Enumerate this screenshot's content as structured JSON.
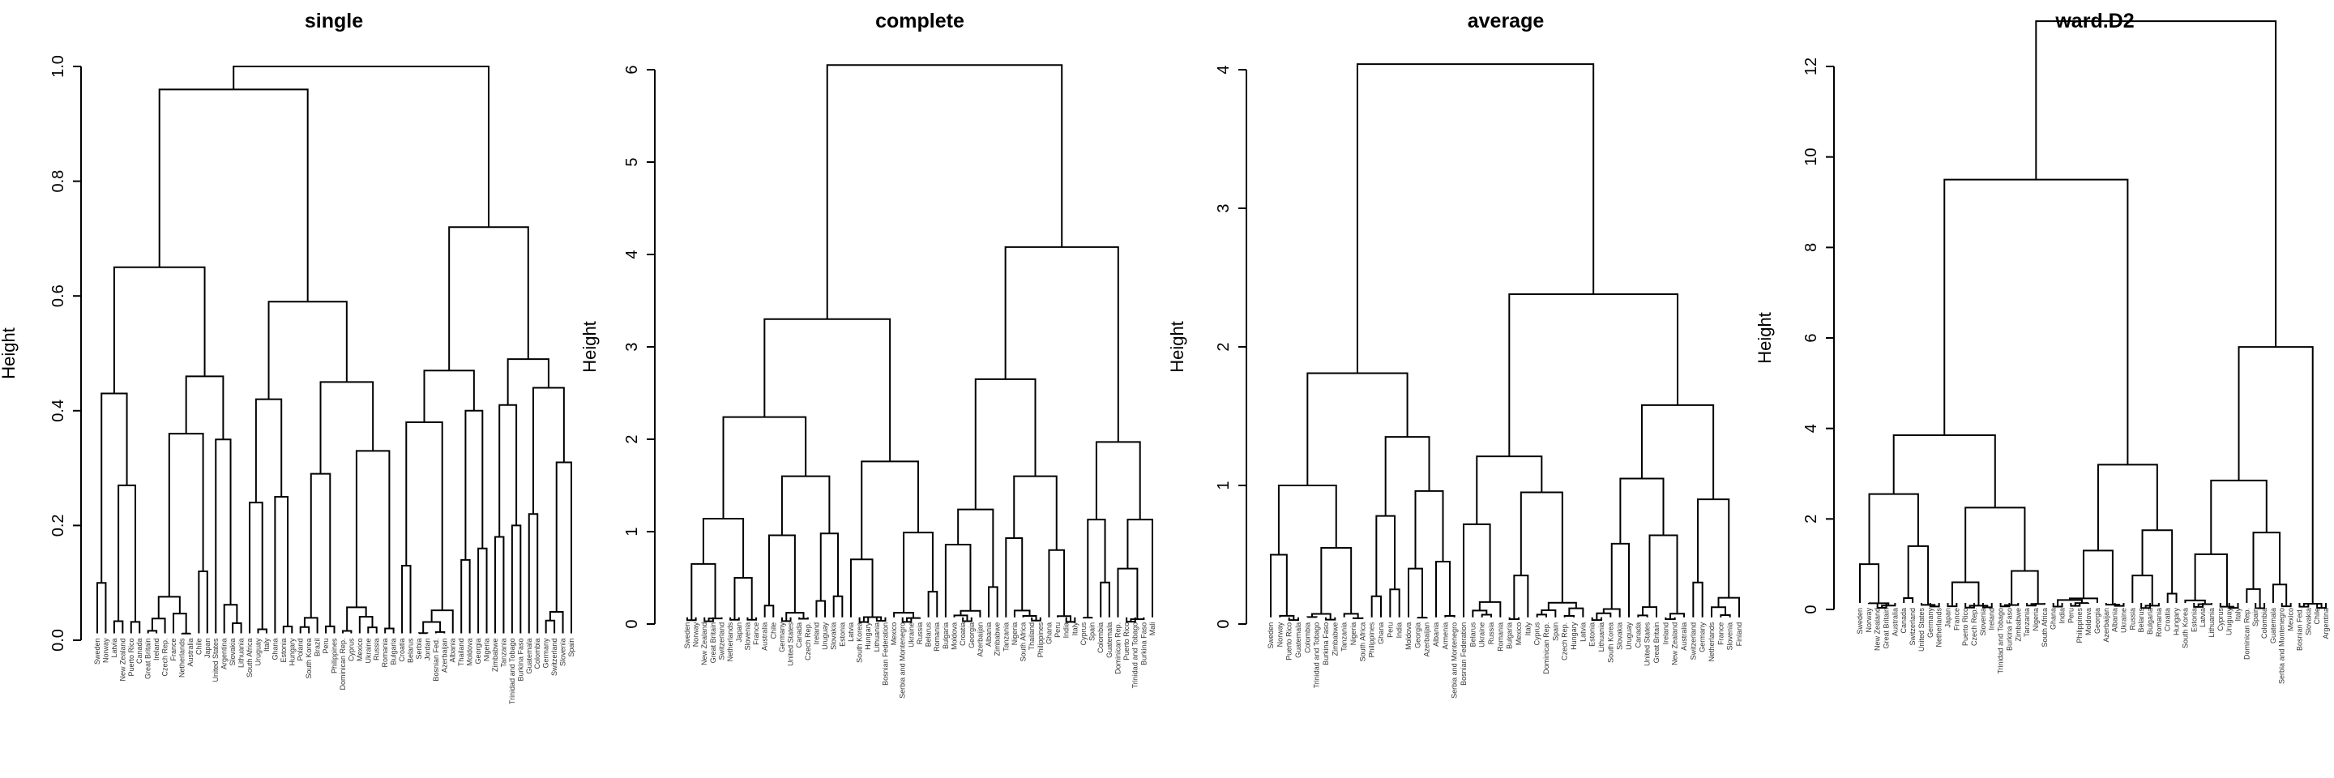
{
  "chart_data": [
    {
      "type": "dendrogram",
      "title": "single",
      "ylabel": "Height",
      "ylim": [
        0,
        1.0
      ],
      "yticks": [
        "0.0",
        "0.2",
        "0.4",
        "0.6",
        "0.8",
        "1.0"
      ],
      "leaves": [
        "Sweden",
        "Norway",
        "Latvia",
        "New Zealand",
        "Puerto Rico",
        "Canada",
        "Great Britain",
        "Ireland",
        "Czech Rep.",
        "France",
        "Netherlands",
        "Australia",
        "Chile",
        "Japan",
        "United States",
        "Argentina",
        "Slovakia",
        "Lithuania",
        "South Africa",
        "Uruguay",
        "Italy",
        "Ghana",
        "Estonia",
        "Hungary",
        "Poland",
        "South Korea",
        "Brazil",
        "Peru",
        "Philippines",
        "Dominican Rep.",
        "Cyprus",
        "Mexico",
        "Ukraine",
        "Russia",
        "Romania",
        "Bulgaria",
        "Croatia",
        "Belarus",
        "Serbia",
        "Jordan",
        "Bosnian Fed.",
        "Azerbaijan",
        "Albania",
        "Thailand",
        "Moldova",
        "Georgia",
        "Nigeria",
        "Zimbabwe",
        "Tanzania",
        "Trinidad and Tobago",
        "Burkina Faso",
        "Guatemala",
        "Colombia",
        "Germany",
        "Switzerland",
        "Slovenia",
        "Spain"
      ],
      "merge_heights": [
        1.0,
        0.96,
        0.72,
        0.65,
        0.59,
        0.49,
        0.47,
        0.46,
        0.45,
        0.44,
        0.43,
        0.42,
        0.41,
        0.4,
        0.38,
        0.36,
        0.35,
        0.33,
        0.31,
        0.29,
        0.27,
        0.25,
        0.24,
        0.22,
        0.2,
        0.18,
        0.16,
        0.14,
        0.13,
        0.12,
        0.1
      ]
    },
    {
      "type": "dendrogram",
      "title": "complete",
      "ylabel": "Height",
      "ylim": [
        0,
        6
      ],
      "yticks": [
        "0",
        "1",
        "2",
        "3",
        "4",
        "5",
        "6"
      ],
      "leaves": [
        "Sweden",
        "Norway",
        "New Zealand",
        "Great Britain",
        "Switzerland",
        "Netherlands",
        "Japan",
        "Slovenia",
        "France",
        "Australia",
        "Chile",
        "Germany",
        "United States",
        "Canada",
        "Czech Rep.",
        "Ireland",
        "Uruguay",
        "Slovakia",
        "Estonia",
        "Latvia",
        "South Korea",
        "Hungary",
        "Lithuania",
        "Bosnian Federation",
        "Mexico",
        "Serbia and Montenegro",
        "Ukraine",
        "Russia",
        "Belarus",
        "Romania",
        "Bulgaria",
        "Moldova",
        "Croatia",
        "Georgia",
        "Azerbaijan",
        "Albania",
        "Zimbabwe",
        "Tanzania",
        "Nigeria",
        "South Africa",
        "Thailand",
        "Philippines",
        "Ghana",
        "Peru",
        "India",
        "Italy",
        "Cyprus",
        "Spain",
        "Colombia",
        "Guatemala",
        "Dominican Rep.",
        "Puerto Rico",
        "Trinidad and Tobago",
        "Burkina Faso",
        "Mali"
      ],
      "merge_heights": [
        6.05,
        4.08,
        3.3,
        2.65,
        2.24,
        1.97,
        1.76,
        1.6,
        1.6,
        1.24,
        1.14,
        1.13,
        1.13,
        0.99,
        0.98,
        0.96,
        0.93,
        0.86,
        0.8,
        0.7,
        0.65,
        0.6,
        0.5,
        0.45,
        0.4,
        0.35,
        0.3,
        0.25,
        0.2
      ]
    },
    {
      "type": "dendrogram",
      "title": "average",
      "ylabel": "Height",
      "ylim": [
        0,
        4
      ],
      "yticks": [
        "0",
        "1",
        "2",
        "3",
        "4"
      ],
      "leaves": [
        "Sweden",
        "Norway",
        "Puerto Rico",
        "Guatemala",
        "Colombia",
        "Trinidad and Tobago",
        "Burkina Faso",
        "Zimbabwe",
        "Tanzania",
        "Nigeria",
        "South Africa",
        "Philippines",
        "Ghana",
        "Peru",
        "India",
        "Moldova",
        "Georgia",
        "Azerbaijan",
        "Albania",
        "Armenia",
        "Serbia and Montenegro",
        "Bosnian Federation",
        "Belarus",
        "Ukraine",
        "Russia",
        "Romania",
        "Bulgaria",
        "Mexico",
        "Italy",
        "Cyprus",
        "Dominican Rep.",
        "Spain",
        "Czech Rep.",
        "Hungary",
        "Latvia",
        "Estonia",
        "Lithuania",
        "South Korea",
        "Slovakia",
        "Uruguay",
        "Canada",
        "United States",
        "Great Britain",
        "Ireland",
        "New Zealand",
        "Australia",
        "Switzerland",
        "Germany",
        "Netherlands",
        "France",
        "Slovenia",
        "Finland"
      ],
      "merge_heights": [
        4.04,
        2.38,
        1.81,
        1.58,
        1.35,
        1.21,
        1.05,
        1.0,
        0.96,
        0.95,
        0.9,
        0.78,
        0.72,
        0.64,
        0.58,
        0.55,
        0.5,
        0.45,
        0.4,
        0.35,
        0.3,
        0.25,
        0.2
      ]
    },
    {
      "type": "dendrogram",
      "title": "ward.D2",
      "ylabel": "Height",
      "ylim": [
        0,
        12
      ],
      "yticks": [
        "0",
        "2",
        "4",
        "6",
        "8",
        "10",
        "12"
      ],
      "leaves": [
        "Sweden",
        "Norway",
        "New Zealand",
        "Great Britain",
        "Australia",
        "Canada",
        "Switzerland",
        "United States",
        "Germany",
        "Netherlands",
        "Japan",
        "France",
        "Puerto Rico",
        "Czech Rep.",
        "Slovenia",
        "Ireland",
        "Trinidad and Tobago",
        "Burkina Faso",
        "Zimbabwe",
        "Tanzania",
        "Nigeria",
        "South Africa",
        "Ghana",
        "India",
        "Peru",
        "Philippines",
        "Moldova",
        "Georgia",
        "Azerbaijan",
        "Albania",
        "Ukraine",
        "Russia",
        "Belarus",
        "Bulgaria",
        "Romania",
        "Croatia",
        "Hungary",
        "South Korea",
        "Estonia",
        "Latvia",
        "Lithuania",
        "Cyprus",
        "Uruguay",
        "Italy",
        "Dominican Rep.",
        "Spain",
        "Colombia",
        "Guatemala",
        "Serbia and Montenegro",
        "Mexico",
        "Bosnian Fed.",
        "Slovakia",
        "Chile",
        "Argentina"
      ],
      "merge_heights": [
        13.0,
        9.5,
        5.8,
        3.85,
        3.2,
        2.85,
        2.55,
        2.25,
        1.75,
        1.7,
        1.4,
        1.3,
        1.22,
        1.0,
        0.85,
        0.75,
        0.6,
        0.55,
        0.45,
        0.35,
        0.25
      ]
    }
  ]
}
